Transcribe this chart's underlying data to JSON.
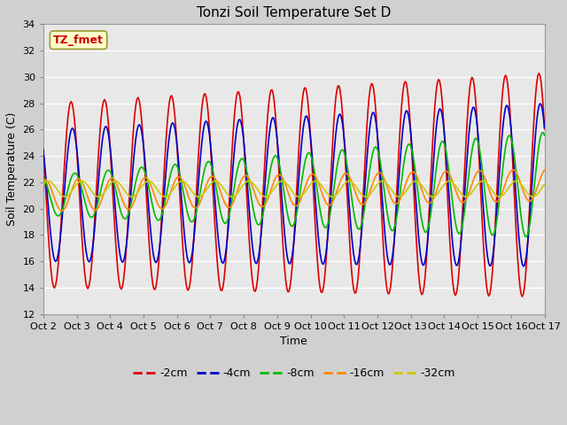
{
  "title": "Tonzi Soil Temperature Set D",
  "xlabel": "Time",
  "ylabel": "Soil Temperature (C)",
  "ylim": [
    12,
    34
  ],
  "yticks": [
    12,
    14,
    16,
    18,
    20,
    22,
    24,
    26,
    28,
    30,
    32,
    34
  ],
  "x_labels": [
    "Oct 2",
    "Oct 3",
    "Oct 4",
    "Oct 5",
    "Oct 6",
    "Oct 7",
    "Oct 8",
    "Oct 9",
    "Oct 10",
    "Oct 11",
    "Oct 12",
    "Oct 13",
    "Oct 14",
    "Oct 15",
    "Oct 16",
    "Oct 17"
  ],
  "annotation_text": "TZ_fmet",
  "annotation_color": "#cc0000",
  "annotation_bg": "#ffffcc",
  "annotation_edge": "#999933",
  "legend_entries": [
    "-2cm",
    "-4cm",
    "-8cm",
    "-16cm",
    "-32cm"
  ],
  "line_colors": [
    "#dd0000",
    "#0000cc",
    "#00bb00",
    "#ff8800",
    "#cccc00"
  ],
  "fig_bg": "#d0d0d0",
  "axes_bg": "#e8e8e8",
  "grid_color": "#ffffff",
  "title_fontsize": 11,
  "label_fontsize": 9,
  "tick_fontsize": 8,
  "legend_fontsize": 9
}
